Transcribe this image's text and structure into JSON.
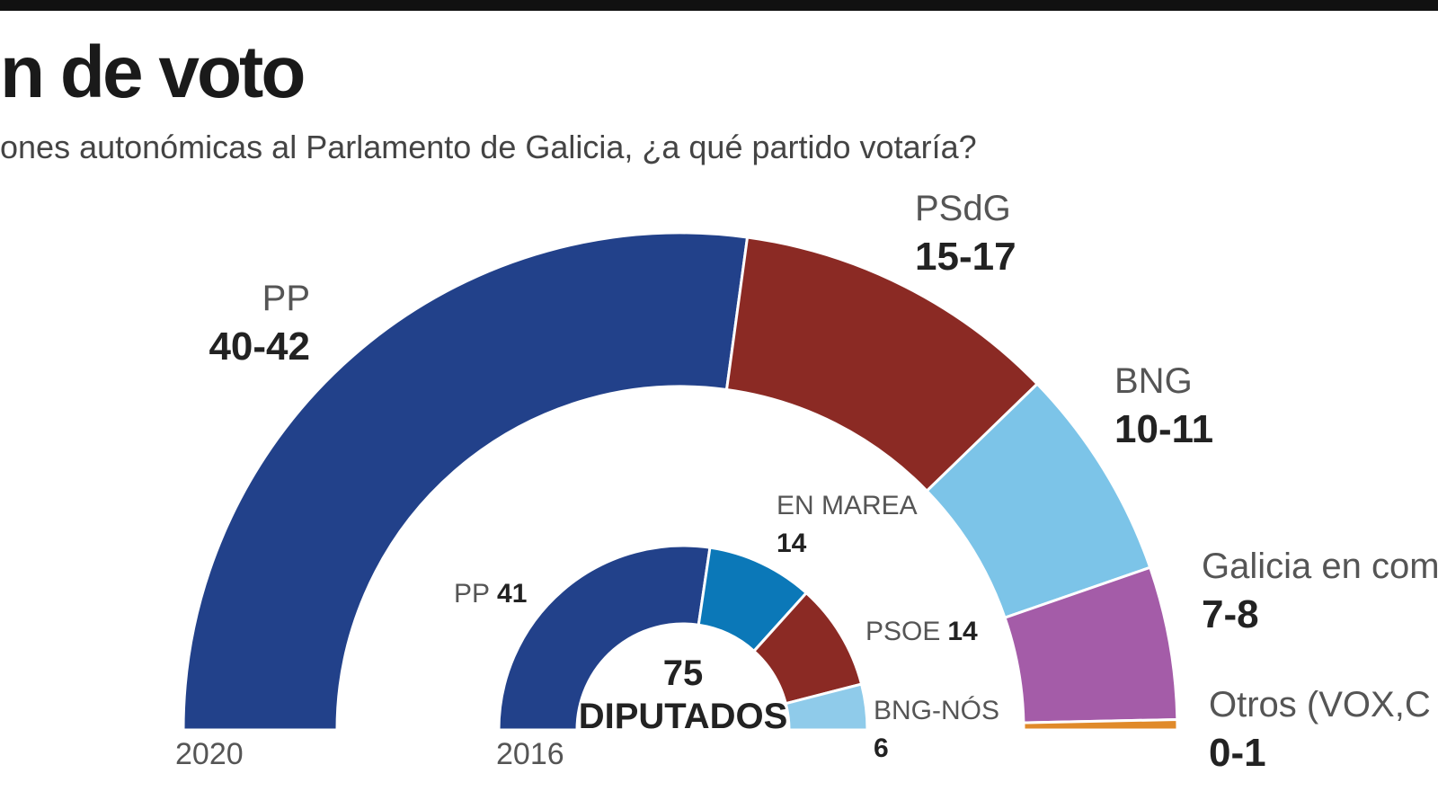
{
  "header": {
    "title": "n de voto",
    "subtitle": "ones autonómicas al Parlamento de Galicia, ¿a qué partido votaría?"
  },
  "chart_data": [
    {
      "type": "parliament",
      "year_label": "2020",
      "categories": [
        "PP",
        "PSdG",
        "BNG",
        "Galicia en com",
        "Otros (VOX,C"
      ],
      "values": [
        [
          40,
          42
        ],
        [
          15,
          17
        ],
        [
          10,
          11
        ],
        [
          7,
          8
        ],
        [
          0,
          1
        ]
      ],
      "value_labels": [
        "40-42",
        "15-17",
        "10-11",
        "7-8",
        "0-1"
      ],
      "colors": [
        "#22418a",
        "#8b2a24",
        "#7cc4e8",
        "#a45ca8",
        "#e08a2a"
      ]
    },
    {
      "type": "parliament",
      "year_label": "2016",
      "categories": [
        "PP",
        "EN MAREA",
        "PSOE",
        "BNG-NÓS"
      ],
      "values": [
        41,
        14,
        14,
        6
      ],
      "colors": [
        "#22418a",
        "#0b78b8",
        "#8b2a24",
        "#8fcbea"
      ],
      "total": 75,
      "center_label": "DIPUTADOS"
    }
  ]
}
